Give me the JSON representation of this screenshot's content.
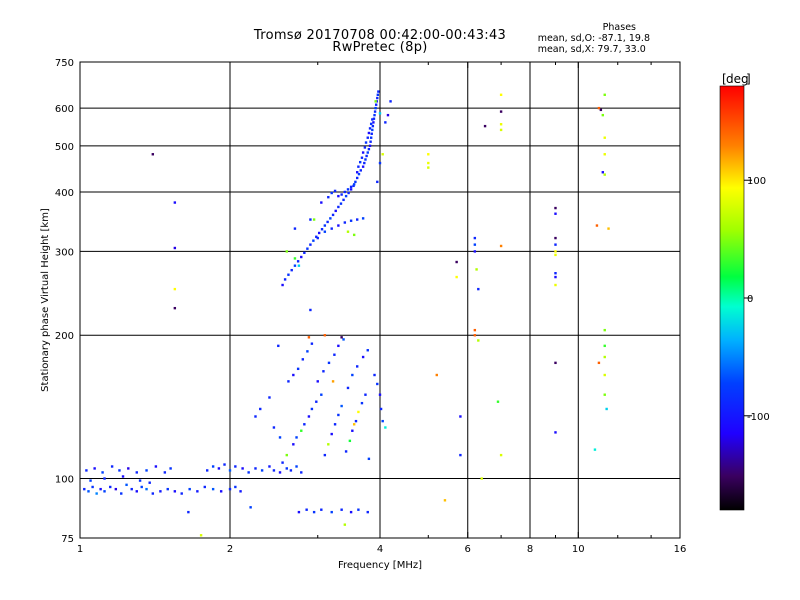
{
  "title_line1": "Tromsø 20170708 00:42:00-00:43:43",
  "title_line2": "RwPretec (8p)",
  "phases": {
    "heading": "Phases",
    "line_o": "mean, sd,O: -87.1, 19.8",
    "line_x": "mean, sd,X: 79.7, 33.0"
  },
  "colorbar": {
    "label": "deg",
    "ticks": [
      {
        "value": 100,
        "label": "100"
      },
      {
        "value": 0,
        "label": "0"
      },
      {
        "value": -100,
        "label": "-100"
      }
    ],
    "range": [
      -180,
      180
    ]
  },
  "chart_data": {
    "type": "scatter",
    "xlabel": "Frequency [MHz]",
    "ylabel": "Stationary phase Virtual Height [km]",
    "xscale": "log",
    "yscale": "log",
    "xlim": [
      1,
      16
    ],
    "ylim": [
      75,
      750
    ],
    "xticks": [
      {
        "value": 1,
        "label": "1"
      },
      {
        "value": 2,
        "label": "2"
      },
      {
        "value": 4,
        "label": "4"
      },
      {
        "value": 6,
        "label": "6"
      },
      {
        "value": 8,
        "label": "8"
      },
      {
        "value": 10,
        "label": "10"
      },
      {
        "value": 16,
        "label": "16"
      }
    ],
    "yticks": [
      {
        "value": 75,
        "label": "75"
      },
      {
        "value": 100,
        "label": "100"
      },
      {
        "value": 200,
        "label": "200"
      },
      {
        "value": 300,
        "label": "300"
      },
      {
        "value": 400,
        "label": "400"
      },
      {
        "value": 500,
        "label": "500"
      },
      {
        "value": 600,
        "label": "600"
      },
      {
        "value": 750,
        "label": "750"
      }
    ],
    "grid": true,
    "points": [
      [
        1.02,
        95,
        -100
      ],
      [
        1.04,
        94,
        -80
      ],
      [
        1.06,
        96,
        -95
      ],
      [
        1.08,
        93,
        -60
      ],
      [
        1.1,
        95,
        -110
      ],
      [
        1.12,
        94,
        -90
      ],
      [
        1.15,
        96,
        -100
      ],
      [
        1.18,
        95,
        -120
      ],
      [
        1.21,
        93,
        -95
      ],
      [
        1.24,
        97,
        -80
      ],
      [
        1.27,
        95,
        -100
      ],
      [
        1.3,
        94,
        -110
      ],
      [
        1.33,
        96,
        -90
      ],
      [
        1.36,
        95,
        -70
      ],
      [
        1.4,
        93,
        -100
      ],
      [
        1.45,
        94,
        -105
      ],
      [
        1.5,
        95,
        -95
      ],
      [
        1.55,
        94,
        -110
      ],
      [
        1.6,
        93,
        -100
      ],
      [
        1.66,
        95,
        -90
      ],
      [
        1.72,
        94,
        -105
      ],
      [
        1.78,
        96,
        -100
      ],
      [
        1.85,
        95,
        -80
      ],
      [
        1.92,
        94,
        -110
      ],
      [
        2.0,
        95,
        -100
      ],
      [
        2.05,
        96,
        -95
      ],
      [
        2.1,
        94,
        -105
      ],
      [
        1.03,
        104,
        -100
      ],
      [
        1.07,
        105,
        -110
      ],
      [
        1.11,
        103,
        -90
      ],
      [
        1.16,
        106,
        -100
      ],
      [
        1.2,
        104,
        -95
      ],
      [
        1.25,
        105,
        -120
      ],
      [
        1.3,
        103,
        -100
      ],
      [
        1.36,
        104,
        -90
      ],
      [
        1.42,
        106,
        -110
      ],
      [
        1.48,
        103,
        -100
      ],
      [
        1.52,
        105,
        -95
      ],
      [
        1.8,
        104,
        -100
      ],
      [
        1.85,
        106,
        -90
      ],
      [
        1.9,
        105,
        -110
      ],
      [
        1.95,
        107,
        -100
      ],
      [
        2.0,
        104,
        -80
      ],
      [
        2.05,
        106,
        -100
      ],
      [
        2.12,
        105,
        -110
      ],
      [
        2.18,
        103,
        -95
      ],
      [
        2.25,
        105,
        -100
      ],
      [
        2.32,
        104,
        -90
      ],
      [
        2.4,
        106,
        -105
      ],
      [
        2.45,
        104,
        -100
      ],
      [
        2.52,
        103,
        -110
      ],
      [
        2.6,
        105,
        -95
      ],
      [
        2.65,
        104,
        -100
      ],
      [
        2.72,
        106,
        -90
      ],
      [
        2.78,
        103,
        -100
      ],
      [
        1.05,
        99,
        -90
      ],
      [
        1.12,
        100,
        -100
      ],
      [
        1.22,
        101,
        -110
      ],
      [
        1.32,
        99,
        -95
      ],
      [
        1.38,
        98,
        -100
      ],
      [
        1.65,
        85,
        -100
      ],
      [
        1.75,
        76,
        80
      ],
      [
        2.2,
        87,
        -90
      ],
      [
        2.75,
        85,
        -110
      ],
      [
        2.85,
        86,
        -100
      ],
      [
        2.95,
        85,
        -95
      ],
      [
        3.05,
        86,
        -100
      ],
      [
        3.2,
        85,
        -90
      ],
      [
        3.35,
        86,
        -100
      ],
      [
        3.5,
        85,
        -110
      ],
      [
        3.62,
        86,
        -95
      ],
      [
        3.78,
        85,
        -100
      ],
      [
        3.4,
        80,
        60
      ],
      [
        2.55,
        108,
        -100
      ],
      [
        2.6,
        112,
        40
      ],
      [
        2.68,
        118,
        -110
      ],
      [
        2.72,
        122,
        -90
      ],
      [
        2.78,
        126,
        20
      ],
      [
        2.82,
        130,
        -100
      ],
      [
        2.88,
        135,
        -110
      ],
      [
        2.92,
        140,
        -95
      ],
      [
        2.98,
        145,
        -100
      ],
      [
        3.05,
        150,
        -90
      ],
      [
        3.1,
        112,
        -100
      ],
      [
        3.15,
        118,
        60
      ],
      [
        3.2,
        124,
        -110
      ],
      [
        3.25,
        130,
        -100
      ],
      [
        3.3,
        136,
        -95
      ],
      [
        3.35,
        142,
        -80
      ],
      [
        3.42,
        114,
        -100
      ],
      [
        3.48,
        120,
        10
      ],
      [
        3.52,
        126,
        -110
      ],
      [
        3.58,
        132,
        -100
      ],
      [
        3.62,
        138,
        100
      ],
      [
        3.68,
        144,
        -95
      ],
      [
        3.74,
        150,
        -100
      ],
      [
        3.8,
        110,
        -90
      ],
      [
        2.62,
        160,
        -100
      ],
      [
        2.68,
        165,
        -110
      ],
      [
        2.74,
        170,
        -95
      ],
      [
        2.8,
        178,
        -100
      ],
      [
        2.86,
        185,
        -90
      ],
      [
        2.92,
        192,
        -100
      ],
      [
        3.0,
        160,
        -110
      ],
      [
        3.08,
        168,
        -100
      ],
      [
        3.16,
        175,
        -95
      ],
      [
        3.24,
        182,
        -100
      ],
      [
        3.3,
        190,
        -110
      ],
      [
        3.38,
        196,
        -80
      ],
      [
        3.45,
        155,
        -100
      ],
      [
        3.52,
        165,
        -90
      ],
      [
        3.6,
        172,
        -100
      ],
      [
        3.7,
        180,
        -110
      ],
      [
        3.78,
        186,
        -95
      ],
      [
        2.5,
        190,
        -100
      ],
      [
        2.4,
        148,
        -100
      ],
      [
        2.3,
        140,
        -100
      ],
      [
        2.25,
        135,
        -100
      ],
      [
        2.45,
        128,
        -100
      ],
      [
        2.52,
        122,
        -90
      ],
      [
        2.88,
        198,
        150
      ],
      [
        3.1,
        200,
        150
      ],
      [
        3.22,
        160,
        130
      ],
      [
        3.35,
        198,
        -150
      ],
      [
        3.55,
        130,
        120
      ],
      [
        3.9,
        165,
        -100
      ],
      [
        3.95,
        158,
        -95
      ],
      [
        4.0,
        150,
        -110
      ],
      [
        4.02,
        140,
        -100
      ],
      [
        4.05,
        132,
        -90
      ],
      [
        4.1,
        128,
        -20
      ],
      [
        2.55,
        255,
        -110
      ],
      [
        2.58,
        262,
        -100
      ],
      [
        2.62,
        268,
        -95
      ],
      [
        2.66,
        274,
        -100
      ],
      [
        2.7,
        280,
        -90
      ],
      [
        2.74,
        286,
        -100
      ],
      [
        2.78,
        292,
        -110
      ],
      [
        2.82,
        298,
        -100
      ],
      [
        2.86,
        304,
        -95
      ],
      [
        2.9,
        310,
        -100
      ],
      [
        2.94,
        316,
        -90
      ],
      [
        2.98,
        322,
        -100
      ],
      [
        3.02,
        328,
        -110
      ],
      [
        3.06,
        334,
        -100
      ],
      [
        3.1,
        340,
        -95
      ],
      [
        3.14,
        346,
        -100
      ],
      [
        3.18,
        352,
        -90
      ],
      [
        3.22,
        358,
        -100
      ],
      [
        3.26,
        365,
        -110
      ],
      [
        3.3,
        372,
        -100
      ],
      [
        3.34,
        378,
        -95
      ],
      [
        3.38,
        385,
        -100
      ],
      [
        3.42,
        392,
        -90
      ],
      [
        3.46,
        398,
        -100
      ],
      [
        3.5,
        405,
        -110
      ],
      [
        3.54,
        412,
        -100
      ],
      [
        3.57,
        420,
        -95
      ],
      [
        3.6,
        428,
        -100
      ],
      [
        3.63,
        436,
        -90
      ],
      [
        3.66,
        444,
        -100
      ],
      [
        3.7,
        452,
        -110
      ],
      [
        3.72,
        460,
        -100
      ],
      [
        3.74,
        468,
        -95
      ],
      [
        3.76,
        476,
        -100
      ],
      [
        3.78,
        484,
        -90
      ],
      [
        3.8,
        492,
        -100
      ],
      [
        3.82,
        500,
        -110
      ],
      [
        3.83,
        510,
        -100
      ],
      [
        3.84,
        520,
        -95
      ],
      [
        3.85,
        530,
        -100
      ],
      [
        3.86,
        540,
        -90
      ],
      [
        3.87,
        550,
        -100
      ],
      [
        3.88,
        560,
        -110
      ],
      [
        3.89,
        570,
        -100
      ],
      [
        3.9,
        580,
        -95
      ],
      [
        3.91,
        590,
        -100
      ],
      [
        3.92,
        600,
        -90
      ],
      [
        3.93,
        610,
        -100
      ],
      [
        3.94,
        620,
        -110
      ],
      [
        3.95,
        630,
        -100
      ],
      [
        3.96,
        640,
        -95
      ],
      [
        3.97,
        650,
        -100
      ],
      [
        3.6,
        440,
        -110
      ],
      [
        3.62,
        452,
        -100
      ],
      [
        3.65,
        462,
        -95
      ],
      [
        3.68,
        472,
        -100
      ],
      [
        3.7,
        484,
        -110
      ],
      [
        3.73,
        496,
        -100
      ],
      [
        3.75,
        508,
        -95
      ],
      [
        3.78,
        520,
        -100
      ],
      [
        3.8,
        532,
        -110
      ],
      [
        3.82,
        544,
        -100
      ],
      [
        3.84,
        556,
        -95
      ],
      [
        3.86,
        568,
        -100
      ],
      [
        3.4,
        400,
        -100
      ],
      [
        3.45,
        405,
        -95
      ],
      [
        3.5,
        410,
        -100
      ],
      [
        3.55,
        415,
        -90
      ],
      [
        3.35,
        395,
        -100
      ],
      [
        3.3,
        392,
        -110
      ],
      [
        3.25,
        402,
        -100
      ],
      [
        3.2,
        398,
        -95
      ],
      [
        3.0,
        320,
        -100
      ],
      [
        3.1,
        330,
        -90
      ],
      [
        3.2,
        335,
        -100
      ],
      [
        3.3,
        340,
        -110
      ],
      [
        3.4,
        345,
        -100
      ],
      [
        3.5,
        348,
        -95
      ],
      [
        3.6,
        350,
        -100
      ],
      [
        3.7,
        352,
        -90
      ],
      [
        3.45,
        330,
        60
      ],
      [
        3.55,
        325,
        40
      ],
      [
        2.6,
        300,
        40
      ],
      [
        2.7,
        290,
        20
      ],
      [
        2.75,
        280,
        -30
      ],
      [
        2.9,
        350,
        -100
      ],
      [
        3.05,
        380,
        -110
      ],
      [
        3.15,
        390,
        -100
      ],
      [
        3.95,
        420,
        -100
      ],
      [
        4.0,
        460,
        -95
      ],
      [
        4.05,
        480,
        80
      ],
      [
        4.1,
        560,
        -100
      ],
      [
        4.15,
        580,
        -120
      ],
      [
        4.2,
        620,
        -100
      ],
      [
        4.0,
        585,
        -30
      ],
      [
        3.92,
        620,
        40
      ],
      [
        1.4,
        480,
        -150
      ],
      [
        1.55,
        380,
        -110
      ],
      [
        1.55,
        305,
        -120
      ],
      [
        1.55,
        250,
        100
      ],
      [
        1.55,
        228,
        -150
      ],
      [
        2.9,
        226,
        -100
      ],
      [
        2.7,
        335,
        -100
      ],
      [
        2.95,
        350,
        40
      ],
      [
        5.0,
        480,
        100
      ],
      [
        5.0,
        460,
        90
      ],
      [
        5.0,
        450,
        80
      ],
      [
        5.2,
        165,
        140
      ],
      [
        5.4,
        90,
        120
      ],
      [
        5.7,
        265,
        100
      ],
      [
        5.7,
        285,
        -150
      ],
      [
        5.8,
        135,
        -110
      ],
      [
        5.8,
        112,
        -100
      ],
      [
        6.2,
        320,
        -100
      ],
      [
        6.2,
        310,
        -90
      ],
      [
        6.2,
        300,
        -110
      ],
      [
        6.25,
        275,
        60
      ],
      [
        6.3,
        250,
        -100
      ],
      [
        6.2,
        205,
        150
      ],
      [
        6.2,
        200,
        150
      ],
      [
        6.3,
        195,
        60
      ],
      [
        6.4,
        100,
        80
      ],
      [
        6.5,
        550,
        -150
      ],
      [
        7.0,
        640,
        100
      ],
      [
        7.0,
        590,
        -150
      ],
      [
        7.0,
        555,
        90
      ],
      [
        7.0,
        540,
        80
      ],
      [
        7.0,
        308,
        140
      ],
      [
        6.9,
        145,
        20
      ],
      [
        7.0,
        112,
        80
      ],
      [
        9.0,
        370,
        -150
      ],
      [
        9.0,
        360,
        -110
      ],
      [
        9.0,
        320,
        -150
      ],
      [
        9.0,
        310,
        -100
      ],
      [
        9.0,
        300,
        100
      ],
      [
        9.0,
        295,
        90
      ],
      [
        9.0,
        270,
        -100
      ],
      [
        9.0,
        265,
        -110
      ],
      [
        9.0,
        255,
        90
      ],
      [
        9.0,
        175,
        -150
      ],
      [
        9.0,
        125,
        -110
      ],
      [
        10.9,
        340,
        150
      ],
      [
        11.0,
        600,
        150
      ],
      [
        11.1,
        595,
        -150
      ],
      [
        11.2,
        580,
        40
      ],
      [
        11.0,
        175,
        150
      ],
      [
        10.8,
        115,
        -20
      ],
      [
        11.3,
        640,
        40
      ],
      [
        11.3,
        520,
        90
      ],
      [
        11.3,
        480,
        90
      ],
      [
        11.2,
        440,
        -110
      ],
      [
        11.3,
        435,
        60
      ],
      [
        11.5,
        335,
        120
      ],
      [
        11.3,
        205,
        40
      ],
      [
        11.3,
        190,
        20
      ],
      [
        11.3,
        180,
        60
      ],
      [
        11.3,
        165,
        80
      ],
      [
        11.3,
        150,
        40
      ],
      [
        11.4,
        140,
        -30
      ]
    ]
  }
}
